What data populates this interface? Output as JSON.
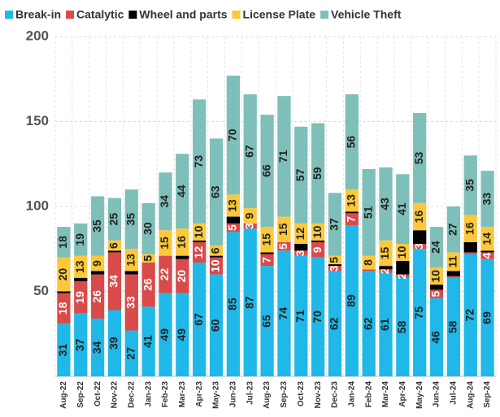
{
  "chart_data": {
    "type": "bar",
    "stacked": true,
    "categories": [
      "Aug-22",
      "Sep-22",
      "Oct-22",
      "Nov-22",
      "Dec-22",
      "Jan-23",
      "Feb-23",
      "Mar-23",
      "Apr-23",
      "May-23",
      "Jun-23",
      "Jul-23",
      "Aug-23",
      "Sep-23",
      "Oct-23",
      "Nov-23",
      "Dec-23",
      "Jan-24",
      "Feb-24",
      "Mar-24",
      "Apr-24",
      "May-24",
      "Jun-24",
      "Jul-24",
      "Aug-24",
      "Sep-24"
    ],
    "series": [
      {
        "name": "Break-in",
        "color": "#1fb8e8",
        "label_color": "#222222",
        "show_labels": true,
        "values": [
          31,
          37,
          34,
          39,
          27,
          41,
          49,
          49,
          67,
          60,
          85,
          87,
          65,
          74,
          71,
          70,
          62,
          89,
          62,
          61,
          58,
          75,
          46,
          58,
          72,
          69
        ]
      },
      {
        "name": "Catalytic",
        "color": "#d94a4a",
        "label_color": "#ffffff",
        "show_labels": true,
        "values": [
          18,
          19,
          26,
          34,
          33,
          26,
          22,
          20,
          12,
          10,
          5,
          3,
          7,
          5,
          3,
          9,
          3,
          7,
          1,
          2,
          2,
          3,
          5,
          1,
          1,
          4
        ]
      },
      {
        "name": "Wheel and parts",
        "color": "#000000",
        "label_color": "#ffffff",
        "show_labels": false,
        "values": [
          1,
          2,
          2,
          1,
          2,
          0,
          0,
          2,
          1,
          1,
          4,
          0,
          1,
          0,
          4,
          1,
          1,
          1,
          0,
          2,
          8,
          8,
          3,
          3,
          6,
          1
        ]
      },
      {
        "name": "License Plate",
        "color": "#fcc83a",
        "label_color": "#222222",
        "show_labels": true,
        "values": [
          20,
          13,
          9,
          6,
          13,
          5,
          15,
          16,
          10,
          6,
          13,
          9,
          15,
          15,
          12,
          10,
          5,
          13,
          8,
          15,
          10,
          16,
          10,
          11,
          16,
          14
        ]
      },
      {
        "name": "Vehicle Theft",
        "color": "#7fbfb9",
        "label_color": "#222222",
        "show_labels": true,
        "values": [
          18,
          19,
          35,
          25,
          35,
          30,
          34,
          44,
          73,
          63,
          70,
          67,
          66,
          71,
          57,
          59,
          37,
          56,
          51,
          43,
          41,
          53,
          24,
          27,
          35,
          33
        ]
      }
    ],
    "ylim": [
      0,
      200
    ],
    "yticks": [
      50,
      100,
      150,
      200
    ],
    "grid": true
  }
}
